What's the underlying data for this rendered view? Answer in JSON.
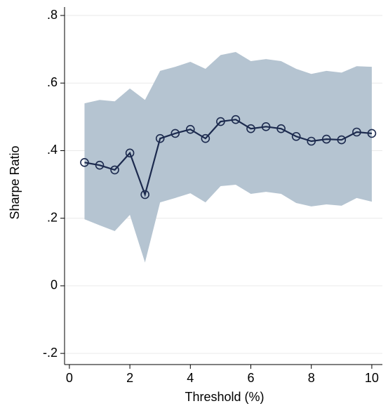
{
  "chart_data": {
    "type": "line",
    "x_label": "Threshold (%)",
    "y_label": "Sharpe Ratio",
    "x": [
      0.5,
      1,
      1.5,
      2,
      2.5,
      3,
      3.5,
      4,
      4.5,
      5,
      5.5,
      6,
      6.5,
      7,
      7.5,
      8,
      8.5,
      9,
      9.5,
      10
    ],
    "values": [
      0.365,
      0.357,
      0.343,
      0.393,
      0.27,
      0.436,
      0.451,
      0.463,
      0.436,
      0.486,
      0.492,
      0.465,
      0.471,
      0.465,
      0.442,
      0.428,
      0.434,
      0.432,
      0.455,
      0.451
    ],
    "upper": [
      0.54,
      0.55,
      0.546,
      0.584,
      0.55,
      0.636,
      0.648,
      0.663,
      0.642,
      0.683,
      0.692,
      0.665,
      0.671,
      0.665,
      0.642,
      0.627,
      0.636,
      0.631,
      0.65,
      0.648
    ],
    "lower": [
      0.197,
      0.179,
      0.162,
      0.21,
      0.069,
      0.247,
      0.26,
      0.274,
      0.247,
      0.295,
      0.299,
      0.272,
      0.278,
      0.272,
      0.245,
      0.235,
      0.241,
      0.237,
      0.26,
      0.249
    ],
    "color": "#1c2a4e",
    "band_color": "#b5c4d1",
    "xlim": [
      -0.16,
      10.35
    ],
    "ylim": [
      -0.233,
      0.825
    ],
    "xticks": [
      0,
      2,
      4,
      6,
      8,
      10
    ],
    "yticks": [
      {
        "value": -0.2,
        "label": "-.2"
      },
      {
        "value": 0,
        "label": "0"
      },
      {
        "value": 0.2,
        "label": ".2"
      },
      {
        "value": 0.4,
        "label": ".4"
      },
      {
        "value": 0.6,
        "label": ".6"
      },
      {
        "value": 0.8,
        "label": ".8"
      }
    ],
    "grid": true
  }
}
